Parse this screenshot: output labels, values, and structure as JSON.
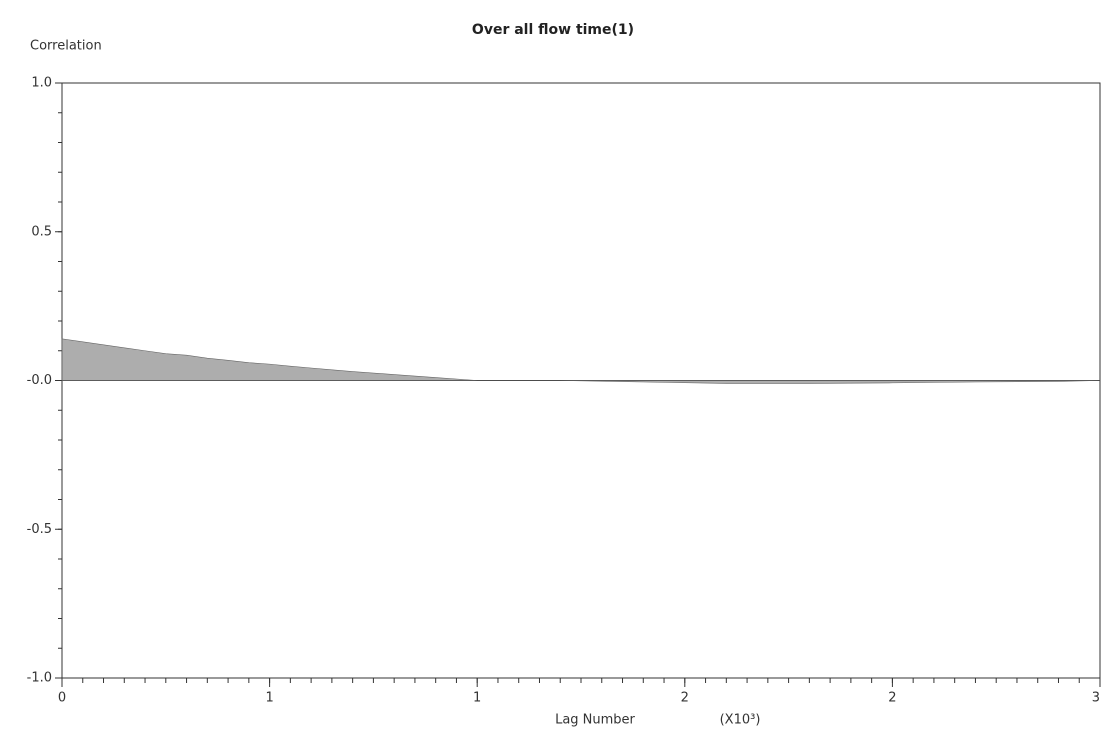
{
  "chart_data": {
    "type": "area",
    "title": "Over all flow time(1)",
    "y_label": "Correlation",
    "x_label": "Lag Number",
    "x_multiplier": "(X10³)",
    "color": "#8a8a8a",
    "x": [
      0,
      0.05,
      0.1,
      0.15,
      0.2,
      0.25,
      0.3,
      0.35,
      0.4,
      0.45,
      0.5,
      0.55,
      0.6,
      0.65,
      0.7,
      0.75,
      0.8,
      0.85,
      0.9,
      0.95,
      1.0,
      1.2,
      1.4,
      1.6,
      1.8,
      2.0,
      2.2,
      2.4,
      2.5
    ],
    "values": [
      0.14,
      0.13,
      0.12,
      0.11,
      0.1,
      0.09,
      0.085,
      0.075,
      0.068,
      0.06,
      0.055,
      0.048,
      0.042,
      0.036,
      0.03,
      0.025,
      0.02,
      0.015,
      0.01,
      0.005,
      0.0,
      0.0,
      -0.005,
      -0.01,
      -0.01,
      -0.008,
      -0.005,
      -0.003,
      0.0
    ],
    "xlim": [
      0,
      2.5
    ],
    "ylim": [
      -1,
      1
    ],
    "xticks": [
      0,
      {
        "value": 0.5,
        "label": "1"
      },
      {
        "value": 1.0,
        "label": "1"
      },
      {
        "value": 1.5,
        "label": "2"
      },
      {
        "value": 2.0,
        "label": "2"
      },
      {
        "value": 2.5,
        "label": "3"
      }
    ],
    "yticks": [
      {
        "value": -1,
        "label": "-1.0"
      },
      -0.5,
      {
        "value": 0,
        "label": "-0.0"
      },
      0.5,
      {
        "value": 1,
        "label": "1.0"
      }
    ]
  }
}
